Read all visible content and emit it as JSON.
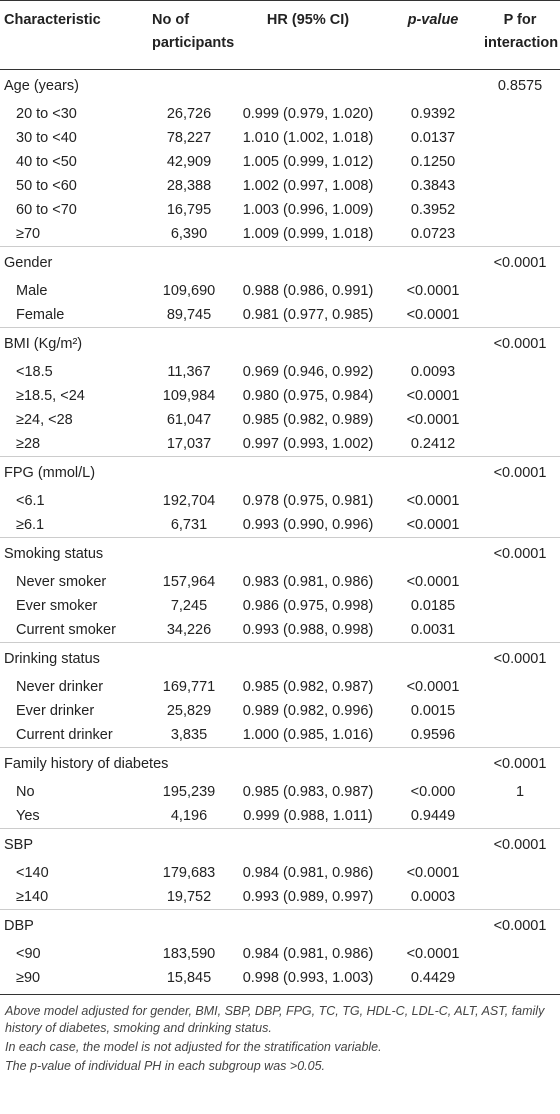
{
  "table": {
    "header": [
      "Characteristic",
      "No of participants",
      "HR (95% CI)",
      "p-value",
      "P for interaction"
    ],
    "groups": [
      {
        "label": "Age (years)",
        "p_interaction": "0.8575",
        "rows": [
          [
            "20 to <30",
            "26,726",
            "0.999 (0.979, 1.020)",
            "0.9392"
          ],
          [
            "30 to <40",
            "78,227",
            "1.010 (1.002, 1.018)",
            "0.0137"
          ],
          [
            "40 to <50",
            "42,909",
            "1.005 (0.999, 1.012)",
            "0.1250"
          ],
          [
            "50 to <60",
            "28,388",
            "1.002 (0.997, 1.008)",
            "0.3843"
          ],
          [
            "60 to <70",
            "16,795",
            "1.003 (0.996, 1.009)",
            "0.3952"
          ],
          [
            "≥70",
            "6,390",
            "1.009 (0.999, 1.018)",
            "0.0723"
          ]
        ]
      },
      {
        "label": "Gender",
        "p_interaction": "<0.0001",
        "rows": [
          [
            "Male",
            "109,690",
            "0.988 (0.986, 0.991)",
            "<0.0001"
          ],
          [
            "Female",
            "89,745",
            "0.981 (0.977, 0.985)",
            "<0.0001"
          ]
        ]
      },
      {
        "label": "BMI (Kg/m²)",
        "p_interaction": "<0.0001",
        "rows": [
          [
            "<18.5",
            "11,367",
            "0.969 (0.946, 0.992)",
            "0.0093"
          ],
          [
            "≥18.5, <24",
            "109,984",
            "0.980 (0.975, 0.984)",
            "<0.0001"
          ],
          [
            "≥24, <28",
            "61,047",
            "0.985 (0.982, 0.989)",
            "<0.0001"
          ],
          [
            "≥28",
            "17,037",
            "0.997 (0.993, 1.002)",
            "0.2412"
          ]
        ]
      },
      {
        "label": "FPG (mmol/L)",
        "p_interaction": "<0.0001",
        "rows": [
          [
            "<6.1",
            "192,704",
            "0.978 (0.975, 0.981)",
            "<0.0001"
          ],
          [
            "≥6.1",
            "6,731",
            "0.993 (0.990, 0.996)",
            "<0.0001"
          ]
        ]
      },
      {
        "label": "Smoking status",
        "p_interaction": "<0.0001",
        "rows": [
          [
            "Never smoker",
            "157,964",
            "0.983 (0.981, 0.986)",
            "<0.0001"
          ],
          [
            "Ever smoker",
            "7,245",
            "0.986 (0.975, 0.998)",
            "0.0185"
          ],
          [
            "Current smoker",
            "34,226",
            "0.993 (0.988, 0.998)",
            "0.0031"
          ]
        ]
      },
      {
        "label": "Drinking status",
        "p_interaction": "<0.0001",
        "rows": [
          [
            "Never drinker",
            "169,771",
            "0.985 (0.982, 0.987)",
            "<0.0001"
          ],
          [
            "Ever drinker",
            "25,829",
            "0.989 (0.982, 0.996)",
            "0.0015"
          ],
          [
            "Current drinker",
            "3,835",
            "1.000 (0.985, 1.016)",
            "0.9596"
          ]
        ]
      },
      {
        "label": "Family history of diabetes",
        "p_interaction": "<0.0001",
        "rows": [
          [
            "No",
            "195,239",
            "0.985 (0.983, 0.987)",
            "<0.000",
            "1"
          ],
          [
            "Yes",
            "4,196",
            "0.999 (0.988, 1.011)",
            "0.9449"
          ]
        ]
      },
      {
        "label": "SBP",
        "p_interaction": "<0.0001",
        "rows": [
          [
            "<140",
            "179,683",
            "0.984 (0.981, 0.986)",
            "<0.0001"
          ],
          [
            "≥140",
            "19,752",
            "0.993 (0.989, 0.997)",
            "0.0003"
          ]
        ]
      },
      {
        "label": "DBP",
        "p_interaction": "<0.0001",
        "rows": [
          [
            "<90",
            "183,590",
            "0.984 (0.981, 0.986)",
            "<0.0001"
          ],
          [
            "≥90",
            "15,845",
            "0.998 (0.993, 1.003)",
            "0.4429"
          ]
        ]
      }
    ],
    "notes": [
      "Above model adjusted for gender, BMI, SBP, DBP, FPG, TC, TG, HDL-C, LDL-C, ALT, AST, family history of diabetes, smoking and drinking status.",
      "In each case, the model is not adjusted for the stratification variable.",
      "The p-value of individual PH in each subgroup was >0.05."
    ]
  }
}
